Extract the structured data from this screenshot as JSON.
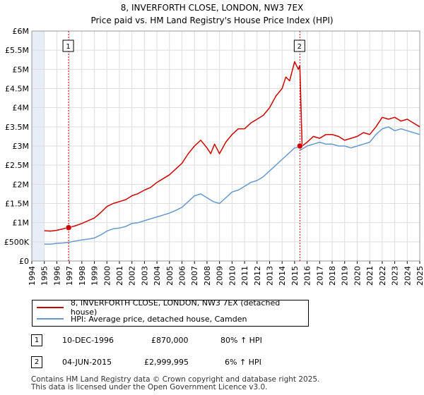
{
  "header": {
    "title": "8, INVERFORTH CLOSE, LONDON, NW3 7EX",
    "subtitle": "Price paid vs. HM Land Registry's House Price Index (HPI)"
  },
  "colors": {
    "property": "#cc0000",
    "hpi": "#6699cc",
    "grid": "#dddddd",
    "band": "#e8eef7",
    "marker_line": "#cc0000"
  },
  "legend": {
    "property_label": "8, INVERFORTH CLOSE, LONDON, NW3 7EX (detached house)",
    "hpi_label": "HPI: Average price, detached house, Camden"
  },
  "sales": [
    {
      "num": "1",
      "date": "10-DEC-1996",
      "price": "£870,000",
      "hpi_change": "80% ↑ HPI"
    },
    {
      "num": "2",
      "date": "04-JUN-2015",
      "price": "£2,999,995",
      "hpi_change": "6% ↑ HPI"
    }
  ],
  "footer": {
    "line1": "Contains HM Land Registry data © Crown copyright and database right 2025.",
    "line2": "This data is licensed under the Open Government Licence v3.0."
  },
  "chart_data": {
    "type": "line",
    "title": "8, INVERFORTH CLOSE, LONDON, NW3 7EX",
    "subtitle": "Price paid vs. HM Land Registry's House Price Index (HPI)",
    "xlabel": "",
    "ylabel": "",
    "xlim": [
      1994,
      2025
    ],
    "ylim": [
      0,
      6000000
    ],
    "ytick_values": [
      0,
      500000,
      1000000,
      1500000,
      2000000,
      2500000,
      3000000,
      3500000,
      4000000,
      4500000,
      5000000,
      5500000,
      6000000
    ],
    "ytick_labels": [
      "£0",
      "£500K",
      "£1M",
      "£1.5M",
      "£2M",
      "£2.5M",
      "£3M",
      "£3.5M",
      "£4M",
      "£4.5M",
      "£5M",
      "£5.5M",
      "£6M"
    ],
    "xtick_labels": [
      "1994",
      "1995",
      "1996",
      "1997",
      "1998",
      "1999",
      "2000",
      "2001",
      "2002",
      "2003",
      "2004",
      "2005",
      "2006",
      "2007",
      "2008",
      "2009",
      "2010",
      "2011",
      "2012",
      "2013",
      "2014",
      "2015",
      "2016",
      "2017",
      "2018",
      "2019",
      "2020",
      "2021",
      "2022",
      "2023",
      "2024",
      "2025"
    ],
    "shaded_ranges": [
      [
        1994,
        1995
      ],
      [
        2025,
        2025.3
      ]
    ],
    "series": [
      {
        "name": "8, INVERFORTH CLOSE, LONDON, NW3 7EX (detached house)",
        "x": [
          1995.0,
          1995.5,
          1996.0,
          1996.5,
          1996.94,
          1997.5,
          1998.0,
          1998.5,
          1999.0,
          1999.5,
          2000.0,
          2000.5,
          2001.0,
          2001.5,
          2002.0,
          2002.5,
          2003.0,
          2003.5,
          2004.0,
          2004.5,
          2005.0,
          2005.5,
          2006.0,
          2006.5,
          2007.0,
          2007.5,
          2008.0,
          2008.3,
          2008.6,
          2009.0,
          2009.5,
          2010.0,
          2010.5,
          2011.0,
          2011.5,
          2012.0,
          2012.5,
          2013.0,
          2013.5,
          2014.0,
          2014.3,
          2014.6,
          2015.0,
          2015.3,
          2015.42,
          2015.6,
          2016.0,
          2016.5,
          2017.0,
          2017.5,
          2018.0,
          2018.5,
          2019.0,
          2019.5,
          2020.0,
          2020.5,
          2021.0,
          2021.5,
          2022.0,
          2022.5,
          2023.0,
          2023.5,
          2024.0,
          2024.5,
          2025.0
        ],
        "values": [
          790000,
          780000,
          800000,
          840000,
          870000,
          920000,
          980000,
          1050000,
          1120000,
          1260000,
          1420000,
          1500000,
          1550000,
          1600000,
          1700000,
          1760000,
          1850000,
          1920000,
          2050000,
          2150000,
          2250000,
          2400000,
          2550000,
          2800000,
          3000000,
          3150000,
          2950000,
          2800000,
          3050000,
          2800000,
          3100000,
          3300000,
          3450000,
          3450000,
          3600000,
          3700000,
          3800000,
          4000000,
          4300000,
          4500000,
          4800000,
          4700000,
          5200000,
          5000000,
          5100000,
          2999995,
          3100000,
          3250000,
          3200000,
          3300000,
          3300000,
          3250000,
          3150000,
          3200000,
          3250000,
          3350000,
          3300000,
          3500000,
          3750000,
          3700000,
          3750000,
          3650000,
          3700000,
          3600000,
          3500000
        ]
      },
      {
        "name": "HPI: Average price, detached house, Camden",
        "x": [
          1995.0,
          1995.5,
          1996.0,
          1996.5,
          1997.0,
          1997.5,
          1998.0,
          1998.5,
          1999.0,
          1999.5,
          2000.0,
          2000.5,
          2001.0,
          2001.5,
          2002.0,
          2002.5,
          2003.0,
          2003.5,
          2004.0,
          2004.5,
          2005.0,
          2005.5,
          2006.0,
          2006.5,
          2007.0,
          2007.5,
          2008.0,
          2008.5,
          2009.0,
          2009.5,
          2010.0,
          2010.5,
          2011.0,
          2011.5,
          2012.0,
          2012.5,
          2013.0,
          2013.5,
          2014.0,
          2014.5,
          2015.0,
          2015.42,
          2015.5,
          2016.0,
          2016.5,
          2017.0,
          2017.5,
          2018.0,
          2018.5,
          2019.0,
          2019.5,
          2020.0,
          2020.5,
          2021.0,
          2021.5,
          2022.0,
          2022.5,
          2023.0,
          2023.5,
          2024.0,
          2024.5,
          2025.0
        ],
        "values": [
          440000,
          440000,
          460000,
          470000,
          490000,
          520000,
          550000,
          570000,
          600000,
          680000,
          780000,
          840000,
          860000,
          900000,
          980000,
          1000000,
          1050000,
          1100000,
          1150000,
          1200000,
          1250000,
          1320000,
          1400000,
          1550000,
          1700000,
          1750000,
          1650000,
          1550000,
          1500000,
          1650000,
          1800000,
          1850000,
          1950000,
          2050000,
          2100000,
          2200000,
          2350000,
          2500000,
          2650000,
          2800000,
          2950000,
          2980000,
          2900000,
          3000000,
          3050000,
          3100000,
          3050000,
          3050000,
          3000000,
          3000000,
          2950000,
          3000000,
          3050000,
          3100000,
          3300000,
          3450000,
          3500000,
          3400000,
          3450000,
          3400000,
          3350000,
          3300000
        ]
      }
    ],
    "annotations": [
      {
        "label": "1",
        "x": 1996.94,
        "value": 870000
      },
      {
        "label": "2",
        "x": 2015.42,
        "value": 2999995
      }
    ]
  }
}
